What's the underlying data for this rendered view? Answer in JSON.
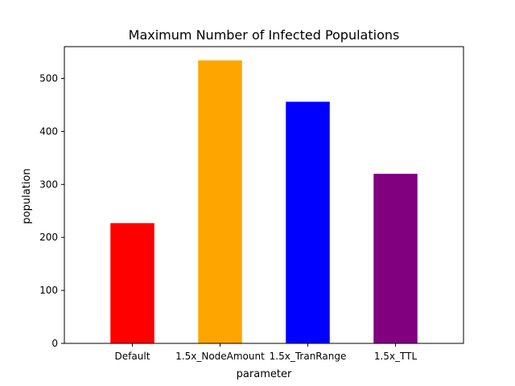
{
  "chart_data": {
    "type": "bar",
    "title": "Maximum Number of Infected Populations",
    "xlabel": "parameter",
    "ylabel": "population",
    "categories": [
      "Default",
      "1.5x_NodeAmount",
      "1.5x_TranRange",
      "1.5x_TTL"
    ],
    "values": [
      227,
      534,
      456,
      320
    ],
    "colors": [
      "#ff0000",
      "#ffa500",
      "#0000ff",
      "#800080"
    ],
    "ylim": [
      0,
      560
    ],
    "yticks": [
      0,
      100,
      200,
      300,
      400,
      500
    ],
    "grid": false,
    "legend": "none"
  }
}
